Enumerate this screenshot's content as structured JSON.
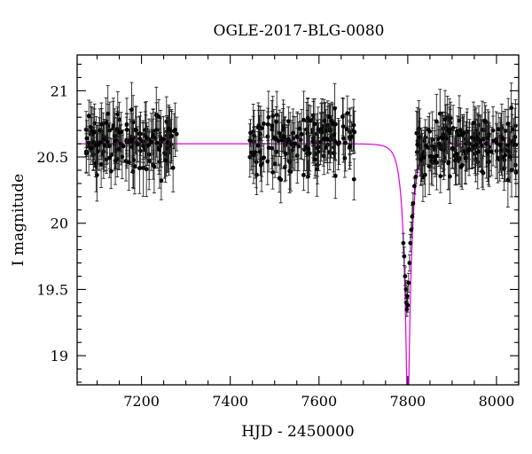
{
  "chart_data": {
    "type": "scatter",
    "title": "OGLE-2017-BLG-0080",
    "xlabel": "HJD - 2450000",
    "ylabel": "I magnitude",
    "xlim": [
      7055,
      8050
    ],
    "ylim": [
      21.27,
      18.78
    ],
    "y_inverted": true,
    "x_ticks_major": [
      7200,
      7400,
      7600,
      7800,
      8000
    ],
    "x_tick_labels": [
      "7200",
      "7400",
      "7600",
      "7800",
      "8000"
    ],
    "x_minor_step": 50,
    "y_ticks_major": [
      19,
      19.5,
      20,
      20.5,
      21
    ],
    "y_tick_labels": [
      "19",
      "19.5",
      "20",
      "20.5",
      "21"
    ],
    "y_minor_step": 0.1,
    "grid": false,
    "legend": "none",
    "colors": {
      "data": "#000000",
      "model": "#e000e0"
    },
    "model": {
      "name": "",
      "type": "microlensing",
      "baseline_mag": 20.6,
      "t0": 7800,
      "tE": 18,
      "u0": 0.14
    },
    "seasons": [
      {
        "x_range": [
          7075,
          7280
        ],
        "mean_mag": 20.62,
        "scatter": 0.17,
        "n": 160
      },
      {
        "x_range": [
          7440,
          7680
        ],
        "mean_mag": 20.62,
        "scatter": 0.18,
        "n": 170
      },
      {
        "x_range": [
          7820,
          8045
        ],
        "mean_mag": 20.6,
        "scatter": 0.16,
        "n": 190
      }
    ],
    "peak_points": [
      {
        "x": 7790,
        "y": 19.85
      },
      {
        "x": 7792,
        "y": 19.75
      },
      {
        "x": 7794,
        "y": 19.6
      },
      {
        "x": 7796,
        "y": 19.5
      },
      {
        "x": 7797,
        "y": 19.4
      },
      {
        "x": 7798,
        "y": 19.35
      },
      {
        "x": 7799,
        "y": 19.45
      },
      {
        "x": 7800,
        "y": 19.38
      },
      {
        "x": 7802,
        "y": 19.55
      },
      {
        "x": 7804,
        "y": 19.7
      },
      {
        "x": 7806,
        "y": 19.85
      },
      {
        "x": 7808,
        "y": 19.95
      },
      {
        "x": 7810,
        "y": 20.05
      },
      {
        "x": 7812,
        "y": 20.15
      },
      {
        "x": 7815,
        "y": 20.28
      },
      {
        "x": 7818,
        "y": 20.35
      }
    ]
  }
}
